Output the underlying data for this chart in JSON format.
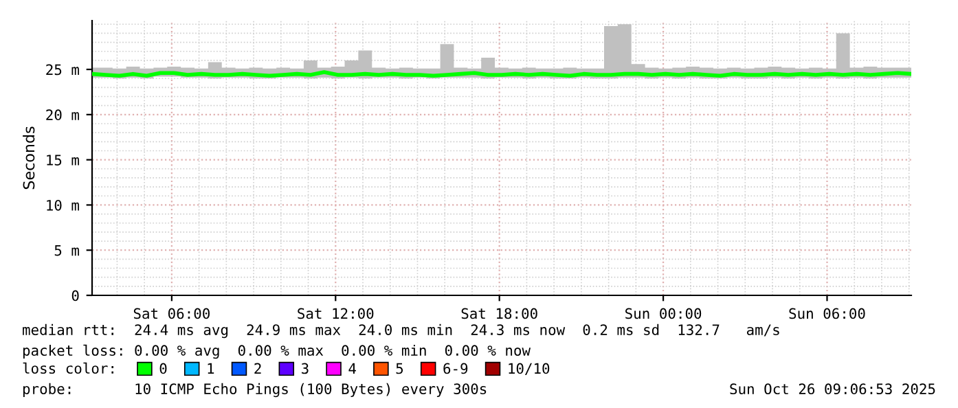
{
  "chart_data": {
    "type": "line",
    "ylabel": "Seconds",
    "x": [
      "2025-10-25T03:05",
      "2025-10-25T03:35",
      "2025-10-25T04:05",
      "2025-10-25T04:35",
      "2025-10-25T05:05",
      "2025-10-25T05:35",
      "2025-10-25T06:05",
      "2025-10-25T06:35",
      "2025-10-25T07:05",
      "2025-10-25T07:35",
      "2025-10-25T08:05",
      "2025-10-25T08:35",
      "2025-10-25T09:05",
      "2025-10-25T09:35",
      "2025-10-25T10:05",
      "2025-10-25T10:35",
      "2025-10-25T11:05",
      "2025-10-25T11:35",
      "2025-10-25T12:05",
      "2025-10-25T12:35",
      "2025-10-25T13:05",
      "2025-10-25T13:35",
      "2025-10-25T14:05",
      "2025-10-25T14:35",
      "2025-10-25T15:05",
      "2025-10-25T15:35",
      "2025-10-25T16:05",
      "2025-10-25T16:35",
      "2025-10-25T17:05",
      "2025-10-25T17:35",
      "2025-10-25T18:05",
      "2025-10-25T18:35",
      "2025-10-25T19:05",
      "2025-10-25T19:35",
      "2025-10-25T20:05",
      "2025-10-25T20:35",
      "2025-10-25T21:05",
      "2025-10-25T21:35",
      "2025-10-25T22:05",
      "2025-10-25T22:35",
      "2025-10-25T23:05",
      "2025-10-25T23:35",
      "2025-10-26T00:05",
      "2025-10-26T00:35",
      "2025-10-26T01:05",
      "2025-10-26T01:35",
      "2025-10-26T02:05",
      "2025-10-26T02:35",
      "2025-10-26T03:05",
      "2025-10-26T03:35",
      "2025-10-26T04:05",
      "2025-10-26T04:35",
      "2025-10-26T05:05",
      "2025-10-26T05:35",
      "2025-10-26T06:05",
      "2025-10-26T06:35",
      "2025-10-26T07:05",
      "2025-10-26T07:35",
      "2025-10-26T08:05",
      "2025-10-26T08:35",
      "2025-10-26T09:05"
    ],
    "legend_title": "loss color:",
    "series": [
      {
        "name": "0",
        "color": "#00ff00",
        "values": [
          24.5,
          24.4,
          24.3,
          24.5,
          24.3,
          24.6,
          24.6,
          24.4,
          24.5,
          24.4,
          24.4,
          24.5,
          24.4,
          24.3,
          24.4,
          24.5,
          24.4,
          24.7,
          24.4,
          24.4,
          24.5,
          24.4,
          24.5,
          24.4,
          24.4,
          24.3,
          24.4,
          24.5,
          24.6,
          24.4,
          24.4,
          24.5,
          24.4,
          24.5,
          24.4,
          24.3,
          24.5,
          24.4,
          24.4,
          24.5,
          24.5,
          24.4,
          24.5,
          24.4,
          24.5,
          24.4,
          24.3,
          24.5,
          24.4,
          24.4,
          24.5,
          24.4,
          24.5,
          24.4,
          24.5,
          24.4,
          24.5,
          24.4,
          24.5,
          24.6,
          24.5
        ],
        "lower": [
          24.1,
          24.1,
          24.0,
          24.1,
          24.0,
          24.2,
          24.2,
          24.1,
          24.1,
          24.0,
          24.1,
          24.1,
          24.0,
          24.0,
          24.1,
          24.1,
          24.0,
          24.1,
          24.0,
          24.1,
          24.0,
          24.1,
          24.1,
          24.0,
          24.1,
          24.0,
          24.1,
          24.1,
          24.1,
          24.0,
          24.1,
          24.1,
          24.0,
          24.1,
          24.0,
          24.0,
          24.1,
          24.0,
          24.0,
          24.1,
          24.1,
          24.0,
          24.1,
          24.0,
          24.1,
          24.0,
          24.0,
          24.1,
          24.0,
          24.0,
          24.1,
          24.0,
          24.1,
          24.0,
          24.1,
          24.0,
          24.1,
          24.0,
          24.1,
          24.1,
          24.1
        ],
        "upper": [
          25.2,
          25.2,
          25.1,
          25.3,
          25.1,
          25.2,
          25.3,
          25.2,
          25.1,
          25.8,
          25.2,
          25.1,
          25.2,
          25.1,
          25.2,
          25.1,
          26.0,
          25.2,
          25.3,
          26.0,
          27.1,
          25.2,
          25.1,
          25.2,
          25.1,
          25.1,
          27.8,
          25.2,
          25.1,
          26.3,
          25.2,
          25.1,
          25.2,
          25.1,
          25.1,
          25.2,
          25.1,
          25.1,
          29.8,
          30.0,
          25.6,
          25.2,
          25.1,
          25.2,
          25.3,
          25.2,
          25.1,
          25.2,
          25.1,
          25.2,
          25.3,
          25.2,
          25.1,
          25.2,
          25.1,
          29.0,
          25.2,
          25.3,
          25.2,
          25.2,
          25.2
        ]
      },
      {
        "name": "1",
        "color": "#00b8ff",
        "values": [
          null,
          null,
          null,
          null,
          null,
          null,
          null,
          null,
          null,
          null,
          null,
          null,
          null,
          null,
          null,
          null,
          null,
          null,
          null,
          null,
          null,
          null,
          null,
          null,
          null,
          null,
          null,
          null,
          null,
          null,
          null,
          null,
          null,
          null,
          null,
          null,
          null,
          null,
          null,
          null,
          null,
          null,
          null,
          null,
          null,
          null,
          null,
          null,
          null,
          null,
          null,
          null,
          null,
          null,
          null,
          null,
          null,
          null,
          null,
          null,
          null
        ]
      },
      {
        "name": "2",
        "color": "#0059ff",
        "values": [
          null,
          null,
          null,
          null,
          null,
          null,
          null,
          null,
          null,
          null,
          null,
          null,
          null,
          null,
          null,
          null,
          null,
          null,
          null,
          null,
          null,
          null,
          null,
          null,
          null,
          null,
          null,
          null,
          null,
          null,
          null,
          null,
          null,
          null,
          null,
          null,
          null,
          null,
          null,
          null,
          null,
          null,
          null,
          null,
          null,
          null,
          null,
          null,
          null,
          null,
          null,
          null,
          null,
          null,
          null,
          null,
          null,
          null,
          null,
          null,
          null
        ]
      },
      {
        "name": "3",
        "color": "#5e00ff",
        "values": [
          null,
          null,
          null,
          null,
          null,
          null,
          null,
          null,
          null,
          null,
          null,
          null,
          null,
          null,
          null,
          null,
          null,
          null,
          null,
          null,
          null,
          null,
          null,
          null,
          null,
          null,
          null,
          null,
          null,
          null,
          null,
          null,
          null,
          null,
          null,
          null,
          null,
          null,
          null,
          null,
          null,
          null,
          null,
          null,
          null,
          null,
          null,
          null,
          null,
          null,
          null,
          null,
          null,
          null,
          null,
          null,
          null,
          null,
          null,
          null,
          null
        ]
      },
      {
        "name": "4",
        "color": "#ff00ff",
        "values": [
          null,
          null,
          null,
          null,
          null,
          null,
          null,
          null,
          null,
          null,
          null,
          null,
          null,
          null,
          null,
          null,
          null,
          null,
          null,
          null,
          null,
          null,
          null,
          null,
          null,
          null,
          null,
          null,
          null,
          null,
          null,
          null,
          null,
          null,
          null,
          null,
          null,
          null,
          null,
          null,
          null,
          null,
          null,
          null,
          null,
          null,
          null,
          null,
          null,
          null,
          null,
          null,
          null,
          null,
          null,
          null,
          null,
          null,
          null,
          null,
          null
        ]
      },
      {
        "name": "5",
        "color": "#ff5500",
        "values": [
          null,
          null,
          null,
          null,
          null,
          null,
          null,
          null,
          null,
          null,
          null,
          null,
          null,
          null,
          null,
          null,
          null,
          null,
          null,
          null,
          null,
          null,
          null,
          null,
          null,
          null,
          null,
          null,
          null,
          null,
          null,
          null,
          null,
          null,
          null,
          null,
          null,
          null,
          null,
          null,
          null,
          null,
          null,
          null,
          null,
          null,
          null,
          null,
          null,
          null,
          null,
          null,
          null,
          null,
          null,
          null,
          null,
          null,
          null,
          null,
          null
        ]
      },
      {
        "name": "6-9",
        "color": "#ff0000",
        "values": [
          null,
          null,
          null,
          null,
          null,
          null,
          null,
          null,
          null,
          null,
          null,
          null,
          null,
          null,
          null,
          null,
          null,
          null,
          null,
          null,
          null,
          null,
          null,
          null,
          null,
          null,
          null,
          null,
          null,
          null,
          null,
          null,
          null,
          null,
          null,
          null,
          null,
          null,
          null,
          null,
          null,
          null,
          null,
          null,
          null,
          null,
          null,
          null,
          null,
          null,
          null,
          null,
          null,
          null,
          null,
          null,
          null,
          null,
          null,
          null,
          null
        ]
      },
      {
        "name": "10/10",
        "color": "#a10000",
        "values": [
          null,
          null,
          null,
          null,
          null,
          null,
          null,
          null,
          null,
          null,
          null,
          null,
          null,
          null,
          null,
          null,
          null,
          null,
          null,
          null,
          null,
          null,
          null,
          null,
          null,
          null,
          null,
          null,
          null,
          null,
          null,
          null,
          null,
          null,
          null,
          null,
          null,
          null,
          null,
          null,
          null,
          null,
          null,
          null,
          null,
          null,
          null,
          null,
          null,
          null,
          null,
          null,
          null,
          null,
          null,
          null,
          null,
          null,
          null,
          null,
          null
        ]
      }
    ],
    "xlim": [
      "2025-10-25T03:05",
      "2025-10-26T09:05"
    ],
    "xticks": [
      {
        "value": "2025-10-25T06:00",
        "label": "Sat 06:00"
      },
      {
        "value": "2025-10-25T12:00",
        "label": "Sat 12:00"
      },
      {
        "value": "2025-10-25T18:00",
        "label": "Sat 18:00"
      },
      {
        "value": "2025-10-26T00:00",
        "label": "Sun 00:00"
      },
      {
        "value": "2025-10-26T06:00",
        "label": "Sun 06:00"
      }
    ],
    "ylim": [
      0,
      30.4
    ],
    "yticks": [
      0,
      {
        "value": 5,
        "label": "5 m"
      },
      {
        "value": 10,
        "label": "10 m"
      },
      {
        "value": 15,
        "label": "15 m"
      },
      {
        "value": 20,
        "label": "20 m"
      },
      {
        "value": 25,
        "label": "25 m"
      }
    ],
    "grid": true,
    "legend": "bottom left",
    "annotations": [
      "median rtt:  24.4 ms avg  24.9 ms max  24.0 ms min  24.3 ms now  0.2 ms sd  132.7   am/s",
      "packet loss: 0.00 % avg  0.00 % max  0.00 % min  0.00 % now",
      "probe:       10 ICMP Echo Pings (100 Bytes) every 300s",
      "Sun Oct 26 09:06:53 2025"
    ]
  }
}
